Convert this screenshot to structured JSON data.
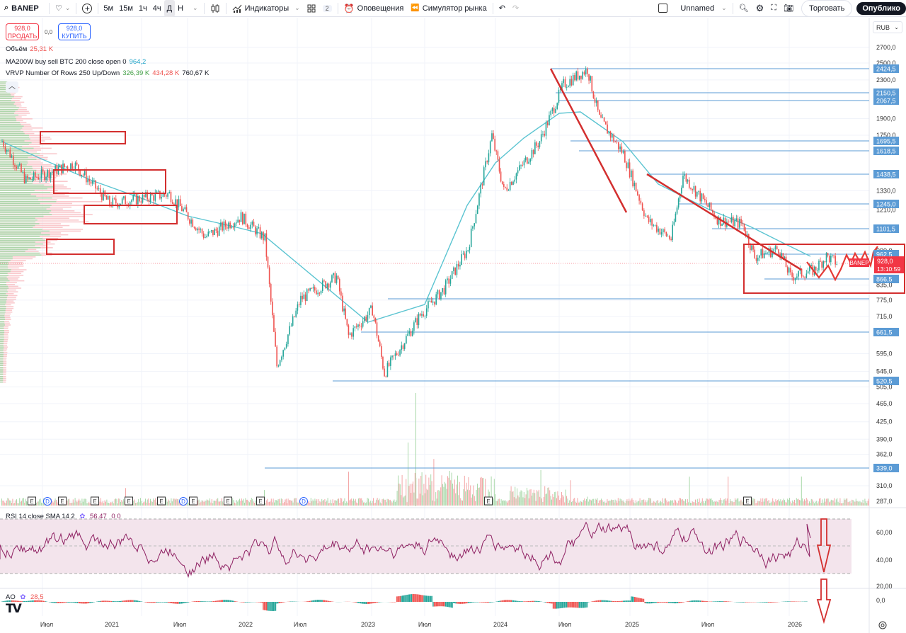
{
  "toolbar": {
    "symbol": "BANEP",
    "timeframes": [
      "5м",
      "15м",
      "1ч",
      "4ч",
      "Д",
      "Н"
    ],
    "active_timeframe": "Д",
    "indicators_label": "Индикаторы",
    "layouts_count": "2",
    "alerts_label": "Оповещения",
    "simulator_label": "Симулятор рынка",
    "layout_name": "Unnamed",
    "trade_label": "Торговать",
    "publish_label": "Опублико"
  },
  "trade_panel": {
    "sell_price": "928,0",
    "sell_label": "ПРОДАТЬ",
    "spread": "0,0",
    "buy_price": "928,0",
    "buy_label": "КУПИТЬ"
  },
  "legends": {
    "volume_label": "Объём",
    "volume_value": "25,31 K",
    "ma_label": "MA200W buy sell BTC 200 close open 0",
    "ma_value": "964,2",
    "vrvp_label": "VRVP Number Of Rows 250 Up/Down",
    "vrvp_up": "326,39 K",
    "vrvp_down": "434,28 K",
    "vrvp_total": "760,67 K",
    "rsi_label": "RSI 14 close SMA 14 2",
    "rsi_value": "56,47",
    "rsi_extra": "0  0",
    "ao_label": "AO",
    "ao_value": "28,5"
  },
  "currency": "RUB",
  "colors": {
    "up": "#26a69a",
    "down": "#ef5350",
    "ma": "#5bc4d1",
    "level": "#5b9bd5",
    "level_label_bg": "#5b9bd5",
    "drawing": "#d32f2f",
    "rsi_line": "#8e2062",
    "rsi_band": "#f3e4ec",
    "price_label": "#f23645"
  },
  "current_price": {
    "value": "928,0",
    "countdown": "13:10:59",
    "ticker_tag": "BANEP"
  },
  "chart_data": {
    "type": "candlestick",
    "title": "BANEP, 1Д",
    "ylabel": "RUB",
    "y_axis_ticks": [
      "2700,0",
      "2500,0",
      "2300,0",
      "1900,0",
      "1750,0",
      "1330,0",
      "1210,0",
      "990,0",
      "835,0",
      "775,0",
      "715,0",
      "595,0",
      "545,0",
      "505,0",
      "465,0",
      "425,0",
      "390,0",
      "362,0",
      "310,0",
      "287,0"
    ],
    "x_axis_ticks": [
      "Июл",
      "2021",
      "Июл",
      "2022",
      "Июл",
      "2023",
      "Июл",
      "2024",
      "Июл",
      "2025",
      "Июл",
      "2026"
    ],
    "horizontal_levels": [
      "2424,5",
      "2150,5",
      "2067,5",
      "1695,5",
      "1618,5",
      "1438,5",
      "1245,0",
      "1101,5",
      "962,5",
      "866,5",
      "661,5",
      "520,5",
      "339,0"
    ],
    "ma200w_last": 964.2,
    "last_price": 928.0,
    "approx_price_path": [
      {
        "date": "2020-04",
        "price": 1700
      },
      {
        "date": "2020-06",
        "price": 1400
      },
      {
        "date": "2020-10",
        "price": 1520
      },
      {
        "date": "2021-01",
        "price": 1250
      },
      {
        "date": "2021-06",
        "price": 1310
      },
      {
        "date": "2021-09",
        "price": 1060
      },
      {
        "date": "2021-12",
        "price": 1170
      },
      {
        "date": "2022-02",
        "price": 1050
      },
      {
        "date": "2022-03",
        "price": 560
      },
      {
        "date": "2022-05",
        "price": 780
      },
      {
        "date": "2022-08",
        "price": 870
      },
      {
        "date": "2022-09",
        "price": 650
      },
      {
        "date": "2022-11",
        "price": 740
      },
      {
        "date": "2022-12",
        "price": 540
      },
      {
        "date": "2023-03",
        "price": 720
      },
      {
        "date": "2023-05",
        "price": 820
      },
      {
        "date": "2023-07",
        "price": 1000
      },
      {
        "date": "2023-09",
        "price": 1750
      },
      {
        "date": "2023-10",
        "price": 1330
      },
      {
        "date": "2024-01",
        "price": 1700
      },
      {
        "date": "2024-03",
        "price": 2250
      },
      {
        "date": "2024-05",
        "price": 2424
      },
      {
        "date": "2024-06",
        "price": 1900
      },
      {
        "date": "2024-08",
        "price": 1600
      },
      {
        "date": "2024-10",
        "price": 1150
      },
      {
        "date": "2024-12",
        "price": 1050
      },
      {
        "date": "2025-01",
        "price": 1438
      },
      {
        "date": "2025-04",
        "price": 1150
      },
      {
        "date": "2025-06",
        "price": 1130
      },
      {
        "date": "2025-07",
        "price": 960
      },
      {
        "date": "2025-09",
        "price": 1000
      },
      {
        "date": "2025-10",
        "price": 870
      },
      {
        "date": "2025-12",
        "price": 900
      },
      {
        "date": "2026-01",
        "price": 962
      },
      {
        "date": "2026-02",
        "price": 928
      }
    ],
    "indicators": {
      "rsi": {
        "period": 14,
        "value": 56.47,
        "levels": [
          70,
          50,
          30
        ],
        "y_ticks": [
          "60,00",
          "40,00",
          "20,00"
        ]
      },
      "ao": {
        "value": 28.5,
        "y_ticks": [
          "0,0"
        ]
      },
      "volume": {
        "value": "25,31 K"
      }
    },
    "events": [
      "E",
      "D",
      "E",
      "E",
      "E",
      "E",
      "D",
      "E",
      "E",
      "E",
      "D",
      "E",
      "E"
    ],
    "annotations": [
      "Red descending trendlines from 2424,5 peak and from 1438,5",
      "Red rectangles on volume profile high-volume nodes",
      "Red box around current consolidation 835–990 with projected zig-zag path",
      "Two red down arrows on RSI and AO panes"
    ]
  }
}
